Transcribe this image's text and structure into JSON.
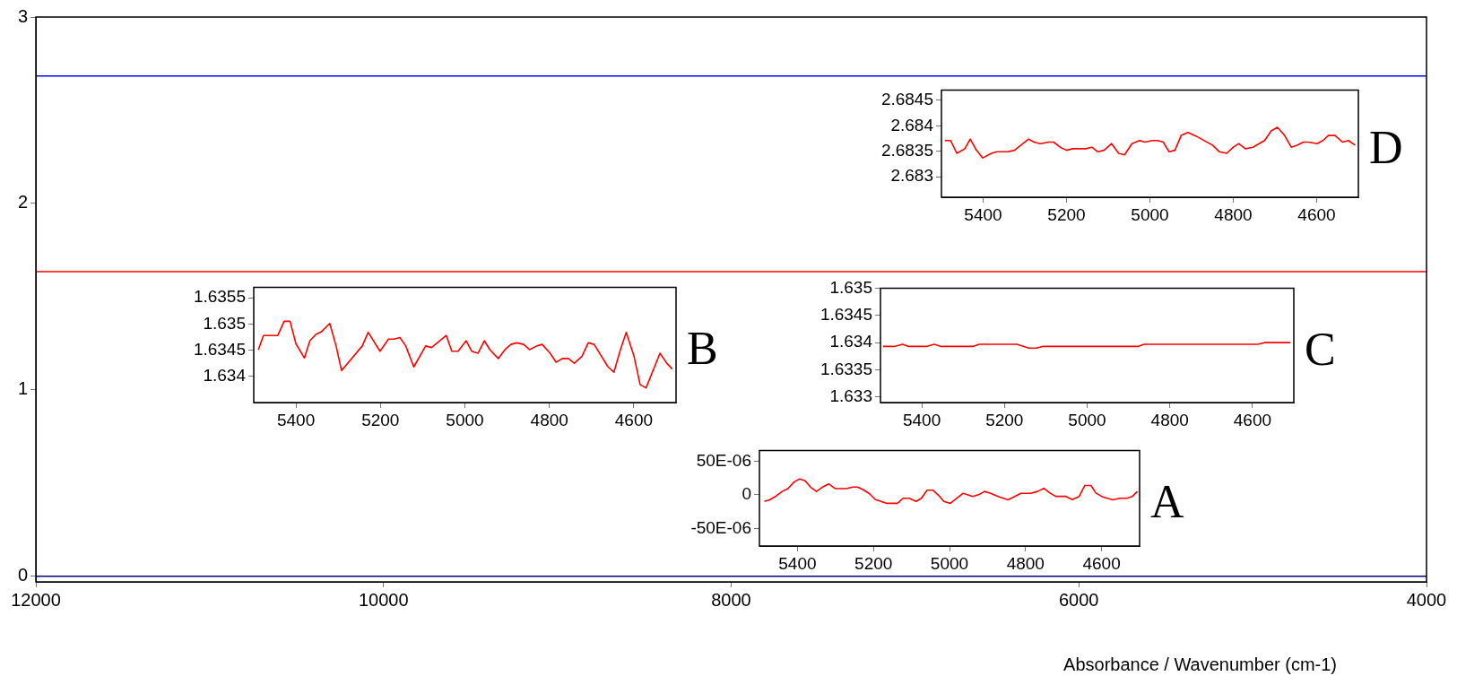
{
  "chart_data": [
    {
      "type": "line",
      "xlabel": "Absorbance / Wavenumber (cm-1)",
      "xlim": [
        12000,
        4000
      ],
      "ylim": [
        -0.03,
        3
      ],
      "xticks": [
        12000,
        10000,
        8000,
        6000,
        4000
      ],
      "yticks": [
        0,
        1,
        2,
        3
      ],
      "series": [
        {
          "color": "#0000ff",
          "x": [
            12000,
            8000,
            4000
          ],
          "values": [
            2.684,
            2.684,
            2.684
          ]
        },
        {
          "color": "#ff0000",
          "x": [
            12000,
            8000,
            4000
          ],
          "values": [
            1.634,
            1.634,
            1.634
          ]
        },
        {
          "color": "#000080",
          "x": [
            12000,
            8000,
            4000
          ],
          "values": [
            0,
            0,
            0
          ]
        }
      ]
    },
    {
      "type": "line",
      "annotations": [
        "D"
      ],
      "xlim": [
        5500,
        4500
      ],
      "ylim": [
        2.6826,
        2.6847
      ],
      "xticks": [
        5400,
        5200,
        5000,
        4800,
        4600
      ],
      "yticks": [
        2.683,
        2.6835,
        2.684,
        2.6845
      ],
      "series": [
        {
          "color": "#ff0000",
          "x": [
            5492,
            5478,
            5463,
            5444,
            5431,
            5416,
            5401,
            5380,
            5367,
            5341,
            5325,
            5291,
            5278,
            5263,
            5243,
            5231,
            5215,
            5200,
            5185,
            5154,
            5139,
            5125,
            5110,
            5092,
            5075,
            5061,
            5043,
            5025,
            5012,
            4994,
            4981,
            4968,
            4954,
            4940,
            4925,
            4909,
            4890,
            4850,
            4833,
            4816,
            4800,
            4787,
            4771,
            4753,
            4725,
            4709,
            4694,
            4677,
            4661,
            4647,
            4632,
            4620,
            4599,
            4585,
            4572,
            4556,
            4538,
            4524,
            4508
          ],
          "values": [
            2.68371,
            2.68371,
            2.68346,
            2.68355,
            2.68374,
            2.68352,
            2.68337,
            2.68346,
            2.68349,
            2.68349,
            2.68352,
            2.68374,
            2.68368,
            2.68365,
            2.68368,
            2.68368,
            2.68358,
            2.68352,
            2.68355,
            2.68355,
            2.68358,
            2.68349,
            2.68352,
            2.68365,
            2.68346,
            2.68343,
            2.68365,
            2.68371,
            2.68368,
            2.68371,
            2.68371,
            2.68368,
            2.68349,
            2.68352,
            2.68381,
            2.68387,
            2.6838,
            2.68362,
            2.68349,
            2.68346,
            2.68358,
            2.68365,
            2.68355,
            2.68358,
            2.68371,
            2.6839,
            2.68397,
            2.68381,
            2.68358,
            2.68362,
            2.68368,
            2.68368,
            2.68365,
            2.68371,
            2.68381,
            2.68381,
            2.68368,
            2.68371,
            2.68362
          ]
        }
      ]
    },
    {
      "type": "line",
      "annotations": [
        "B"
      ],
      "xlim": [
        5500,
        4500
      ],
      "ylim": [
        1.6335,
        1.6357
      ],
      "xticks": [
        5400,
        5200,
        5000,
        4800,
        4600
      ],
      "yticks": [
        1.634,
        1.6345,
        1.635,
        1.6355
      ],
      "series": [
        {
          "color": "#ff0000",
          "x": [
            5489,
            5477,
            5443,
            5428,
            5414,
            5400,
            5380,
            5367,
            5353,
            5340,
            5320,
            5305,
            5292,
            5243,
            5229,
            5201,
            5181,
            5168,
            5154,
            5140,
            5121,
            5093,
            5079,
            5044,
            5031,
            5016,
            4997,
            4984,
            4969,
            4954,
            4941,
            4921,
            4905,
            4891,
            4877,
            4861,
            4847,
            4830,
            4817,
            4799,
            4784,
            4769,
            4755,
            4741,
            4723,
            4708,
            4694,
            4661,
            4647,
            4632,
            4618,
            4600,
            4585,
            4571,
            4538,
            4522,
            4509
          ],
          "values": [
            1.63451,
            1.63478,
            1.63478,
            1.63505,
            1.63505,
            1.63462,
            1.63435,
            1.63468,
            1.6348,
            1.63485,
            1.63501,
            1.63458,
            1.63411,
            1.63458,
            1.63484,
            1.63448,
            1.63471,
            1.63471,
            1.63474,
            1.63458,
            1.63418,
            1.63458,
            1.63455,
            1.63478,
            1.63448,
            1.63448,
            1.63468,
            1.63448,
            1.63444,
            1.63468,
            1.63451,
            1.63434,
            1.63451,
            1.63461,
            1.63464,
            1.63461,
            1.63451,
            1.63458,
            1.63461,
            1.63445,
            1.63427,
            1.63434,
            1.63434,
            1.63425,
            1.63438,
            1.63464,
            1.63461,
            1.63418,
            1.63408,
            1.6345,
            1.63484,
            1.6344,
            1.63384,
            1.63378,
            1.63444,
            1.63425,
            1.63414
          ]
        }
      ]
    },
    {
      "type": "line",
      "annotations": [
        "C"
      ],
      "xlim": [
        5500,
        4500
      ],
      "ylim": [
        1.6329,
        1.635
      ],
      "xticks": [
        5400,
        5200,
        5000,
        4800,
        4600
      ],
      "yticks": [
        1.633,
        1.6335,
        1.634,
        1.6345,
        1.635
      ],
      "series": [
        {
          "color": "#ff0000",
          "x": [
            5494,
            5467,
            5446,
            5432,
            5389,
            5370,
            5353,
            5277,
            5261,
            5170,
            5141,
            5123,
            5108,
            4877,
            4862,
            4587,
            4571,
            4509
          ],
          "values": [
            1.63393,
            1.63393,
            1.63397,
            1.63393,
            1.63393,
            1.63397,
            1.63393,
            1.63393,
            1.63397,
            1.63397,
            1.6339,
            1.6339,
            1.63393,
            1.63393,
            1.63397,
            1.63397,
            1.634,
            1.634
          ]
        }
      ]
    },
    {
      "type": "line",
      "annotations": [
        "A"
      ],
      "xlim": [
        5500,
        4500
      ],
      "ylim": [
        -7.6e-05,
        6.6e-05
      ],
      "xticks": [
        5400,
        5200,
        5000,
        4800,
        4600
      ],
      "yticks": [
        {
          "value": -5e-05,
          "label": "-50E-06"
        },
        0,
        {
          "value": 5e-05,
          "label": "50E-06"
        }
      ],
      "series": [
        {
          "color": "#ff0000",
          "x": [
            5487,
            5473,
            5459,
            5440,
            5425,
            5409,
            5394,
            5380,
            5365,
            5350,
            5335,
            5318,
            5301,
            5271,
            5255,
            5242,
            5228,
            5211,
            5195,
            5180,
            5165,
            5137,
            5122,
            5106,
            5088,
            5074,
            5059,
            5044,
            5029,
            5015,
            4998,
            4964,
            4939,
            4922,
            4908,
            4892,
            4871,
            4846,
            4812,
            4787,
            4768,
            4752,
            4736,
            4721,
            4694,
            4677,
            4659,
            4644,
            4628,
            4615,
            4600,
            4585,
            4570,
            4551,
            4534,
            4519,
            4506
          ],
          "values": [
            -9.8e-06,
            -7.4e-06,
            -2.8e-06,
            5.1e-06,
            9.3e-06,
            1.91e-05,
            2.37e-05,
            2.09e-05,
            1.12e-05,
            5.1e-06,
            1.12e-05,
            1.63e-05,
            9.3e-06,
            9.3e-06,
            1.16e-05,
            1.16e-05,
            7.9e-06,
            1.9e-06,
            -7e-06,
            -9.8e-06,
            -1.26e-05,
            -1.26e-05,
            -5.1e-06,
            -5.1e-06,
            -9.8e-06,
            -5.1e-06,
            7e-06,
            7e-06,
            -5e-07,
            -9.8e-06,
            -1.26e-05,
            2.3e-06,
            -2.3e-06,
            5e-07,
            5.1e-06,
            2.3e-06,
            -2.8e-06,
            -7.4e-06,
            2.3e-06,
            2.3e-06,
            5.1e-06,
            9.8e-06,
            2.8e-06,
            -2.3e-06,
            -2.3e-06,
            -7e-06,
            -2.3e-06,
            1.4e-05,
            1.4e-05,
            2.8e-06,
            -2.3e-06,
            -5.1e-06,
            -7.4e-06,
            -5.1e-06,
            -5.1e-06,
            -2.3e-06,
            5.1e-06
          ]
        }
      ]
    }
  ]
}
